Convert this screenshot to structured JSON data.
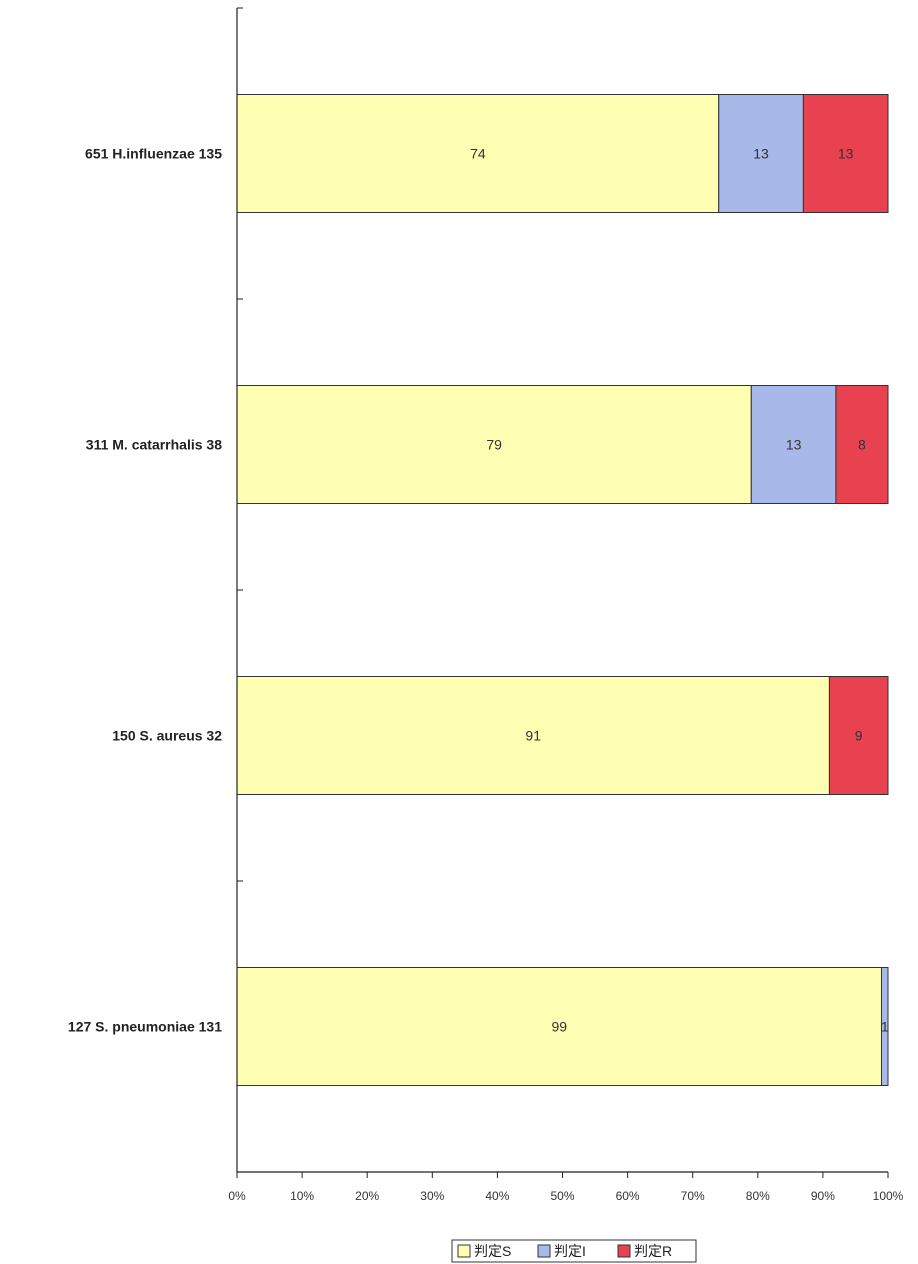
{
  "chart_data": {
    "type": "bar",
    "orientation": "horizontal",
    "stacked": "percent",
    "categories": [
      "651 H.influenzae 135",
      "311 M. catarrhalis 38",
      "150 S. aureus 32",
      "127 S. pneumoniae 131"
    ],
    "series": [
      {
        "name": "判定S",
        "values": [
          74,
          79,
          91,
          99
        ],
        "color": "#ffffb3"
      },
      {
        "name": "判定I",
        "values": [
          13,
          13,
          0,
          1
        ],
        "color": "#a8b8e8"
      },
      {
        "name": "判定R",
        "values": [
          13,
          8,
          9,
          0
        ],
        "color": "#e8414f"
      }
    ],
    "data_labels": [
      [
        "74",
        "13",
        "13"
      ],
      [
        "79",
        "13",
        "8"
      ],
      [
        "91",
        "",
        "9"
      ],
      [
        "99",
        "1",
        ""
      ]
    ],
    "x_ticks": [
      "0%",
      "10%",
      "20%",
      "30%",
      "40%",
      "50%",
      "60%",
      "70%",
      "80%",
      "90%",
      "100%"
    ],
    "xlim": [
      0,
      100
    ],
    "grid": false,
    "legend_position": "bottom",
    "title": "",
    "xlabel": "",
    "ylabel": ""
  }
}
